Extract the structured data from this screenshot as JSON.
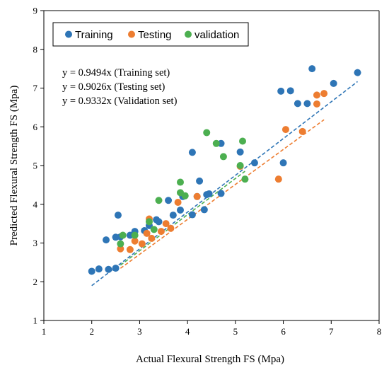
{
  "chart_data": {
    "type": "scatter",
    "xlabel": "Actual Flexural Strength FS (Mpa)",
    "ylabel": "Predicted Flexural Strength FS (Mpa)",
    "xlim": [
      1,
      8
    ],
    "ylim": [
      1,
      9
    ],
    "xticks": [
      "1",
      "2",
      "3",
      "4",
      "5",
      "6",
      "7",
      "8"
    ],
    "yticks": [
      "1",
      "2",
      "3",
      "4",
      "5",
      "6",
      "7",
      "8",
      "9"
    ],
    "grid": false,
    "legend_position": "top-left",
    "annotations": [
      "y = 0.9494x (Training set)",
      "y = 0.9026x (Testing set)",
      "y = 0.9332x (Validation set)"
    ],
    "series": [
      {
        "name": "Training",
        "color": "#2e75b6",
        "trend_slope": 0.9494,
        "points": [
          [
            2.0,
            2.27
          ],
          [
            2.15,
            2.33
          ],
          [
            2.35,
            2.32
          ],
          [
            2.3,
            3.08
          ],
          [
            2.5,
            2.35
          ],
          [
            2.5,
            3.15
          ],
          [
            2.6,
            3.16
          ],
          [
            2.55,
            3.72
          ],
          [
            2.8,
            3.2
          ],
          [
            2.9,
            3.3
          ],
          [
            3.1,
            3.32
          ],
          [
            3.2,
            3.45
          ],
          [
            3.35,
            3.6
          ],
          [
            3.4,
            3.55
          ],
          [
            3.6,
            4.1
          ],
          [
            3.7,
            3.72
          ],
          [
            3.85,
            3.85
          ],
          [
            3.9,
            4.2
          ],
          [
            4.1,
            3.73
          ],
          [
            4.2,
            4.2
          ],
          [
            4.25,
            4.6
          ],
          [
            4.35,
            3.86
          ],
          [
            4.4,
            4.25
          ],
          [
            4.45,
            4.27
          ],
          [
            4.1,
            5.34
          ],
          [
            4.7,
            5.57
          ],
          [
            4.7,
            4.28
          ],
          [
            5.1,
            5.35
          ],
          [
            5.4,
            5.07
          ],
          [
            6.0,
            5.07
          ],
          [
            5.95,
            6.92
          ],
          [
            6.15,
            6.93
          ],
          [
            6.3,
            6.6
          ],
          [
            6.5,
            6.6
          ],
          [
            6.6,
            7.5
          ],
          [
            7.05,
            7.12
          ],
          [
            7.55,
            7.4
          ]
        ]
      },
      {
        "name": "Testing",
        "color": "#ed7d31",
        "trend_slope": 0.9026,
        "points": [
          [
            2.6,
            2.85
          ],
          [
            2.8,
            2.83
          ],
          [
            2.9,
            3.05
          ],
          [
            3.05,
            2.98
          ],
          [
            3.15,
            3.25
          ],
          [
            3.2,
            3.62
          ],
          [
            3.25,
            3.12
          ],
          [
            3.45,
            3.3
          ],
          [
            3.55,
            3.5
          ],
          [
            3.65,
            3.38
          ],
          [
            3.8,
            4.05
          ],
          [
            4.2,
            4.2
          ],
          [
            5.1,
            4.98
          ],
          [
            5.9,
            4.65
          ],
          [
            6.05,
            5.93
          ],
          [
            6.4,
            5.88
          ],
          [
            6.7,
            6.59
          ],
          [
            6.7,
            6.82
          ],
          [
            6.85,
            6.86
          ]
        ]
      },
      {
        "name": "validation",
        "color": "#4caf50",
        "trend_slope": 0.9332,
        "points": [
          [
            2.6,
            2.98
          ],
          [
            2.65,
            3.2
          ],
          [
            2.9,
            3.2
          ],
          [
            3.2,
            3.55
          ],
          [
            3.3,
            3.35
          ],
          [
            3.4,
            4.1
          ],
          [
            3.85,
            4.57
          ],
          [
            3.85,
            4.3
          ],
          [
            3.95,
            4.22
          ],
          [
            4.4,
            5.85
          ],
          [
            4.6,
            5.57
          ],
          [
            4.75,
            5.23
          ],
          [
            5.1,
            5.0
          ],
          [
            5.15,
            5.63
          ],
          [
            5.2,
            4.65
          ]
        ]
      }
    ]
  }
}
